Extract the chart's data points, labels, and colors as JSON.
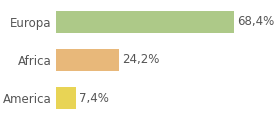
{
  "categories": [
    "Europa",
    "Africa",
    "America"
  ],
  "values": [
    68.4,
    24.2,
    7.4
  ],
  "labels": [
    "68,4%",
    "24,2%",
    "7,4%"
  ],
  "bar_colors": [
    "#adc988",
    "#e8b87a",
    "#e8d455"
  ],
  "background_color": "#ffffff",
  "xlim": [
    0,
    85
  ],
  "bar_height": 0.58,
  "label_fontsize": 8.5,
  "tick_fontsize": 8.5,
  "label_color": "#555555",
  "tick_color": "#555555"
}
